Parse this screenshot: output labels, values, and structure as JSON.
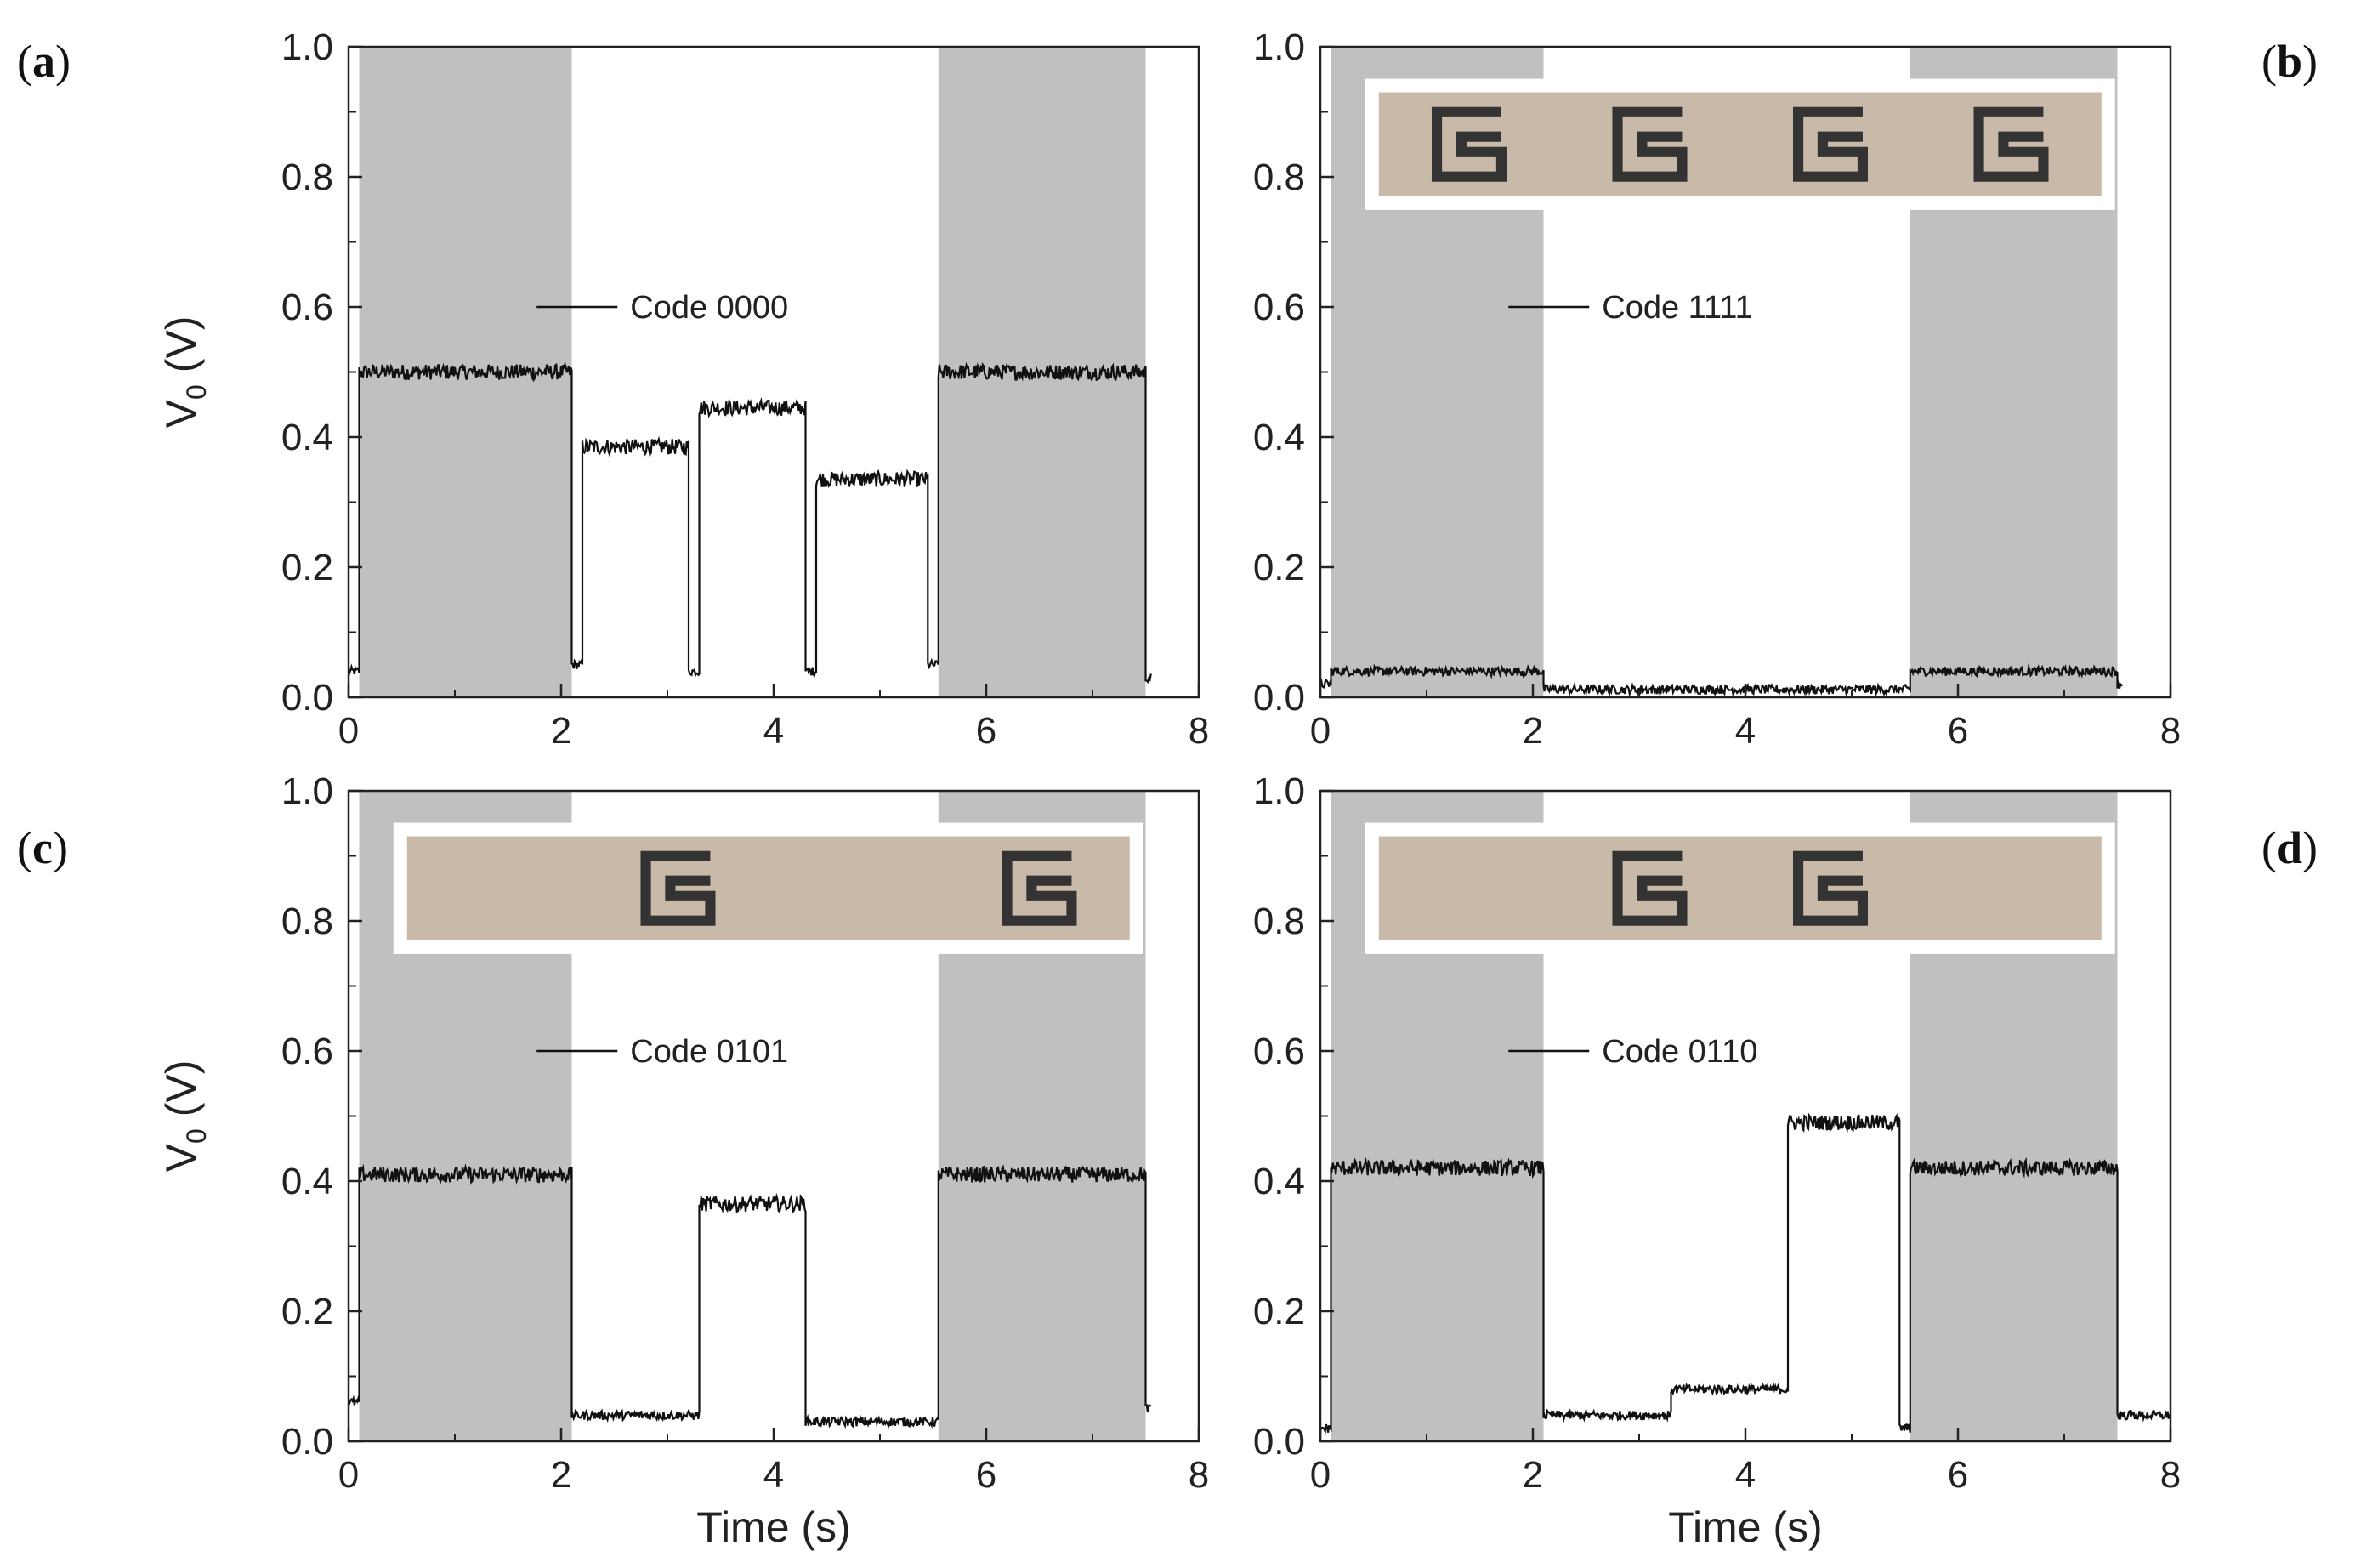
{
  "figure": {
    "ylabel_main": "V",
    "ylabel_sub": "0",
    "ylabel_unit": " (V)",
    "xlabel": "Time (s)",
    "background_color": "#ffffff",
    "shade_color": "#c0c0c0",
    "line_color": "#111111"
  },
  "chart_data": [
    {
      "type": "line",
      "panel_label": "a",
      "label_open": "(",
      "label_close": ")",
      "legend": "Code 0000",
      "xlim": [
        0,
        8
      ],
      "ylim": [
        0,
        1.0
      ],
      "xticks": [
        "0",
        "2",
        "4",
        "6",
        "8"
      ],
      "yticks": [
        "0.0",
        "0.2",
        "0.4",
        "0.6",
        "0.8",
        "1.0"
      ],
      "shaded_regions": [
        [
          0.1,
          2.1
        ],
        [
          5.55,
          7.5
        ]
      ],
      "has_inset_image": false,
      "series": [
        {
          "name": "Code 0000",
          "segments": [
            [
              0.0,
              0.1,
              0.04
            ],
            [
              0.1,
              2.1,
              0.5
            ],
            [
              2.1,
              2.2,
              0.05
            ],
            [
              2.2,
              3.2,
              0.385
            ],
            [
              3.2,
              3.3,
              0.04
            ],
            [
              3.3,
              4.3,
              0.445
            ],
            [
              4.3,
              4.4,
              0.04
            ],
            [
              4.4,
              5.45,
              0.335
            ],
            [
              5.45,
              5.55,
              0.05
            ],
            [
              5.55,
              7.5,
              0.5
            ],
            [
              7.5,
              7.55,
              0.03
            ]
          ]
        }
      ]
    },
    {
      "type": "line",
      "panel_label": "b",
      "label_open": "(",
      "label_close": ")",
      "legend": "Code 1111",
      "xlim": [
        0,
        8
      ],
      "ylim": [
        0,
        1.0
      ],
      "xticks": [
        "0",
        "2",
        "4",
        "6",
        "8"
      ],
      "yticks": [
        "0.0",
        "0.2",
        "0.4",
        "0.6",
        "0.8",
        "1.0"
      ],
      "shaded_regions": [
        [
          0.1,
          2.1
        ],
        [
          5.55,
          7.5
        ]
      ],
      "has_inset_image": true,
      "inset_patterns": [
        1,
        1,
        1,
        1
      ],
      "series": [
        {
          "name": "Code 1111",
          "segments": [
            [
              0.0,
              0.1,
              0.02
            ],
            [
              0.1,
              2.1,
              0.04
            ],
            [
              2.1,
              5.55,
              0.012
            ],
            [
              5.55,
              7.5,
              0.04
            ],
            [
              7.5,
              7.55,
              0.02
            ]
          ]
        }
      ]
    },
    {
      "type": "line",
      "panel_label": "c",
      "label_open": "(",
      "label_close": ")",
      "legend": "Code 0101",
      "xlim": [
        0,
        8
      ],
      "ylim": [
        0,
        1.0
      ],
      "xticks": [
        "0",
        "2",
        "4",
        "6",
        "8"
      ],
      "yticks": [
        "0.0",
        "0.2",
        "0.4",
        "0.6",
        "0.8",
        "1.0"
      ],
      "shaded_regions": [
        [
          0.1,
          2.1
        ],
        [
          5.55,
          7.5
        ]
      ],
      "has_inset_image": true,
      "inset_patterns": [
        0,
        1,
        0,
        1
      ],
      "series": [
        {
          "name": "Code 0101",
          "segments": [
            [
              0.0,
              0.1,
              0.06
            ],
            [
              0.1,
              2.1,
              0.41
            ],
            [
              2.1,
              3.3,
              0.04
            ],
            [
              3.3,
              4.3,
              0.365
            ],
            [
              4.3,
              5.55,
              0.03
            ],
            [
              5.55,
              7.5,
              0.41
            ],
            [
              7.5,
              7.55,
              0.05
            ]
          ]
        }
      ]
    },
    {
      "type": "line",
      "panel_label": "d",
      "label_open": "(",
      "label_close": ")",
      "legend": "Code 0110",
      "xlim": [
        0,
        8
      ],
      "ylim": [
        0,
        1.0
      ],
      "xticks": [
        "0",
        "2",
        "4",
        "6",
        "8"
      ],
      "yticks": [
        "0.0",
        "0.2",
        "0.4",
        "0.6",
        "0.8",
        "1.0"
      ],
      "shaded_regions": [
        [
          0.1,
          2.1
        ],
        [
          5.55,
          7.5
        ]
      ],
      "has_inset_image": true,
      "inset_patterns": [
        0,
        1,
        1,
        0
      ],
      "series": [
        {
          "name": "Code 0110",
          "segments": [
            [
              0.0,
              0.1,
              0.02
            ],
            [
              0.1,
              2.1,
              0.42
            ],
            [
              2.1,
              3.3,
              0.04
            ],
            [
              3.3,
              4.4,
              0.08
            ],
            [
              4.4,
              5.45,
              0.49
            ],
            [
              5.45,
              5.55,
              0.02
            ],
            [
              5.55,
              7.5,
              0.42
            ],
            [
              7.5,
              8.0,
              0.04
            ]
          ]
        }
      ]
    }
  ]
}
